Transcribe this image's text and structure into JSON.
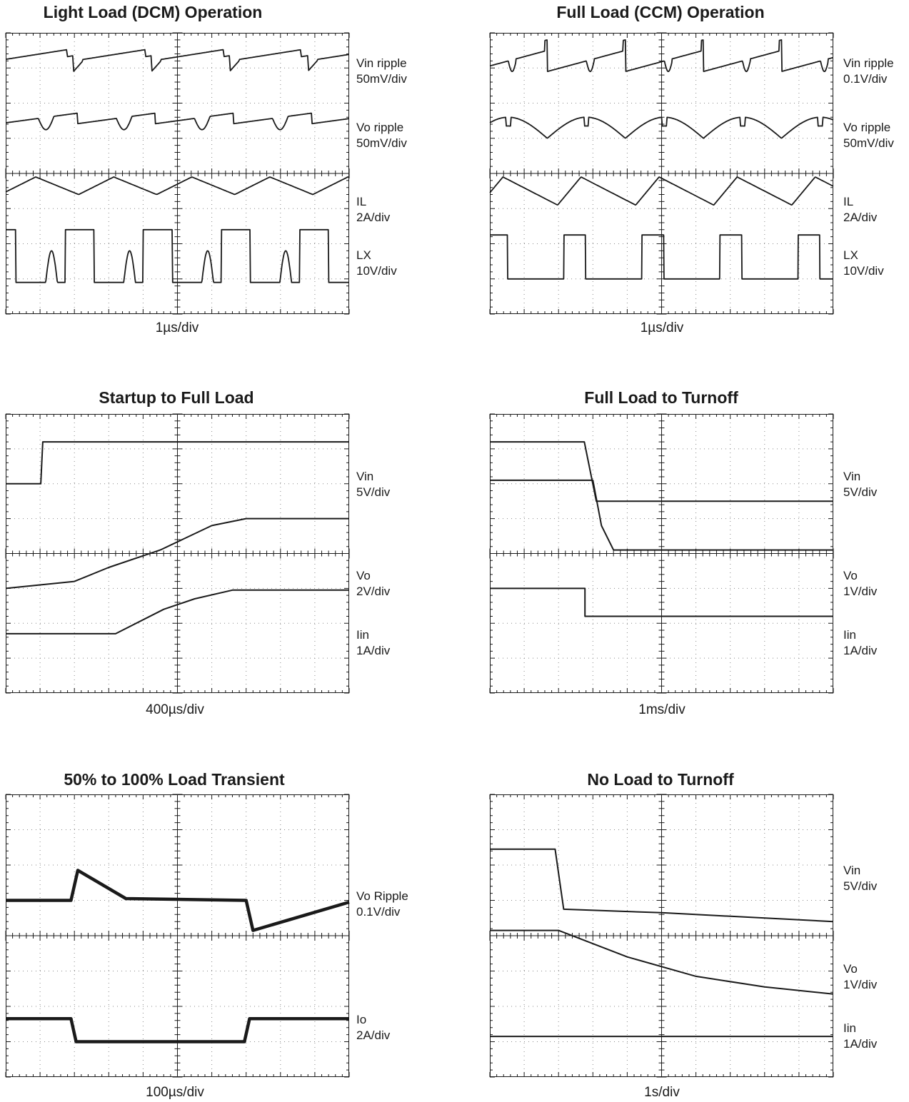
{
  "colors": {
    "trace": "#1a1a1a",
    "grid": "#888888",
    "background": "#ffffff"
  },
  "panels": [
    {
      "title": "Light Load (DCM) Operation",
      "timebase": "1µs/div",
      "channels": [
        {
          "name": "Vin ripple",
          "scale": "50mV/div"
        },
        {
          "name": "Vo ripple",
          "scale": "50mV/div"
        },
        {
          "name": "IL",
          "scale": "2A/div"
        },
        {
          "name": "LX",
          "scale": "10V/div"
        }
      ]
    },
    {
      "title": "Full Load (CCM) Operation",
      "timebase": "1µs/div",
      "channels": [
        {
          "name": "Vin ripple",
          "scale": "0.1V/div"
        },
        {
          "name": "Vo ripple",
          "scale": "50mV/div"
        },
        {
          "name": "IL",
          "scale": "2A/div"
        },
        {
          "name": "LX",
          "scale": "10V/div"
        }
      ]
    },
    {
      "title": "Startup to Full Load",
      "timebase": "400µs/div",
      "channels": [
        {
          "name": "Vin",
          "scale": "5V/div"
        },
        {
          "name": "Vo",
          "scale": "2V/div"
        },
        {
          "name": "Iin",
          "scale": "1A/div"
        }
      ]
    },
    {
      "title": "Full Load to Turnoff",
      "timebase": "1ms/div",
      "channels": [
        {
          "name": "Vin",
          "scale": "5V/div"
        },
        {
          "name": "Vo",
          "scale": "1V/div"
        },
        {
          "name": "Iin",
          "scale": "1A/div"
        }
      ]
    },
    {
      "title": "50% to 100% Load Transient",
      "timebase": "100µs/div",
      "channels": [
        {
          "name": "Vo Ripple",
          "scale": "0.1V/div"
        },
        {
          "name": "Io",
          "scale": "2A/div"
        }
      ]
    },
    {
      "title": "No Load to Turnoff",
      "timebase": "1s/div",
      "channels": [
        {
          "name": "Vin",
          "scale": "5V/div"
        },
        {
          "name": "Vo",
          "scale": "1V/div"
        },
        {
          "name": "Iin",
          "scale": "1A/div"
        }
      ]
    }
  ],
  "chart_data": [
    {
      "type": "line",
      "title": "Light Load (DCM) Operation",
      "xlabel": "1µs/div",
      "x_divisions": 10,
      "y_divisions": 8,
      "series": [
        {
          "name": "Vin ripple",
          "pattern": "sawtooth-rise-drop",
          "periods": 4.4
        },
        {
          "name": "Vo ripple",
          "pattern": "dcm-ripple-ringing",
          "periods": 4.4
        },
        {
          "name": "IL",
          "pattern": "triangle",
          "periods": 4.4
        },
        {
          "name": "LX",
          "pattern": "pulse-with-ringing",
          "periods": 4.4
        }
      ]
    },
    {
      "type": "line",
      "title": "Full Load (CCM) Operation",
      "xlabel": "1µs/div",
      "x_divisions": 10,
      "y_divisions": 8,
      "series": [
        {
          "name": "Vin ripple",
          "pattern": "sawtooth-with-spikes",
          "periods": 4.4
        },
        {
          "name": "Vo ripple",
          "pattern": "arc-with-spikes",
          "periods": 4.4
        },
        {
          "name": "IL",
          "pattern": "triangle",
          "periods": 4.4
        },
        {
          "name": "LX",
          "pattern": "square-pulse",
          "periods": 4.4
        }
      ]
    },
    {
      "type": "line",
      "title": "Startup to Full Load",
      "xlabel": "400µs/div",
      "x_divisions": 10,
      "y_divisions": 8,
      "series": [
        {
          "name": "Vin",
          "x_div": [
            0,
            1.02,
            1.08,
            1.2,
            10
          ],
          "y_div": [
            6.0,
            6.0,
            7.2,
            7.2,
            7.2
          ]
        },
        {
          "name": "Vo",
          "x_div": [
            0,
            2.0,
            3.0,
            4.5,
            6.0,
            7.0,
            10
          ],
          "y_div": [
            3.0,
            3.2,
            3.6,
            4.1,
            4.8,
            5.0,
            5.0
          ]
        },
        {
          "name": "Iin",
          "x_div": [
            0,
            3.2,
            4.6,
            5.5,
            6.6,
            10
          ],
          "y_div": [
            1.7,
            1.7,
            2.4,
            2.7,
            2.95,
            2.95
          ]
        }
      ]
    },
    {
      "type": "line",
      "title": "Full Load to Turnoff",
      "xlabel": "1ms/div",
      "x_divisions": 10,
      "y_divisions": 8,
      "series": [
        {
          "name": "Vin",
          "x_div": [
            0,
            2.75,
            3.1,
            10
          ],
          "y_div": [
            7.2,
            7.2,
            5.5,
            5.5
          ]
        },
        {
          "name": "Vo",
          "x_div": [
            0,
            3.0,
            3.25,
            3.6,
            10
          ],
          "y_div": [
            6.1,
            6.1,
            4.8,
            4.1,
            4.1
          ]
        },
        {
          "name": "Iin",
          "x_div": [
            0,
            2.77,
            2.77,
            10
          ],
          "y_div": [
            3.0,
            3.0,
            2.2,
            2.2
          ]
        }
      ]
    },
    {
      "type": "line",
      "title": "50% to 100% Load Transient",
      "xlabel": "100µs/div",
      "x_divisions": 10,
      "y_divisions": 8,
      "series": [
        {
          "name": "Vo Ripple",
          "x_div": [
            0,
            1.9,
            2.1,
            3.5,
            7.0,
            7.2,
            10
          ],
          "y_div": [
            5.0,
            5.0,
            5.85,
            5.05,
            5.0,
            4.15,
            4.95
          ]
        },
        {
          "name": "Io",
          "x_div": [
            0,
            1.9,
            2.05,
            6.95,
            7.1,
            10
          ],
          "y_div": [
            1.65,
            1.65,
            1.0,
            1.0,
            1.65,
            1.65
          ]
        }
      ]
    },
    {
      "type": "line",
      "title": "No Load to Turnoff",
      "xlabel": "1s/div",
      "x_divisions": 10,
      "y_divisions": 8,
      "series": [
        {
          "name": "Vin",
          "x_div": [
            0,
            1.9,
            2.15,
            5.0,
            10
          ],
          "y_div": [
            6.45,
            6.45,
            4.75,
            4.65,
            4.4
          ]
        },
        {
          "name": "Vo",
          "x_div": [
            0,
            2.0,
            4.0,
            6.0,
            8.0,
            10
          ],
          "y_div": [
            4.15,
            4.15,
            3.4,
            2.85,
            2.55,
            2.35
          ]
        },
        {
          "name": "Iin",
          "x_div": [
            0,
            10
          ],
          "y_div": [
            1.15,
            1.15
          ]
        }
      ]
    }
  ]
}
